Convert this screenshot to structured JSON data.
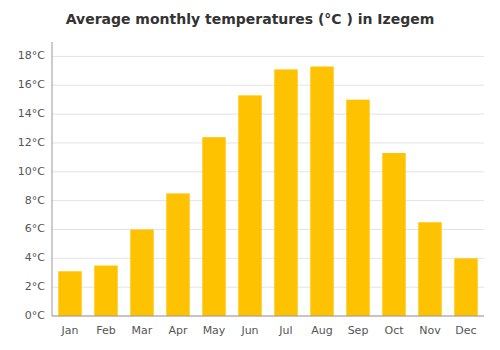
{
  "chart_data": {
    "type": "bar",
    "title": "Average monthly temperatures (°C ) in Izegem",
    "categories": [
      "Jan",
      "Feb",
      "Mar",
      "Apr",
      "May",
      "Jun",
      "Jul",
      "Aug",
      "Sep",
      "Oct",
      "Nov",
      "Dec"
    ],
    "values": [
      3.1,
      3.5,
      6.0,
      8.5,
      12.4,
      15.3,
      17.1,
      17.3,
      15.0,
      11.3,
      6.5,
      4.0
    ],
    "color": "#FFC200",
    "ylim": [
      0,
      19
    ],
    "yticks": [
      {
        "value": 0,
        "label": "0°C"
      },
      {
        "value": 2,
        "label": "2°C"
      },
      {
        "value": 4,
        "label": "4°C"
      },
      {
        "value": 6,
        "label": "6°C"
      },
      {
        "value": 8,
        "label": "8°C"
      },
      {
        "value": 10,
        "label": "10°C"
      },
      {
        "value": 12,
        "label": "12°C"
      },
      {
        "value": 14,
        "label": "14°C"
      },
      {
        "value": 16,
        "label": "16°C"
      },
      {
        "value": 18,
        "label": "18°C"
      }
    ],
    "grid": true
  }
}
